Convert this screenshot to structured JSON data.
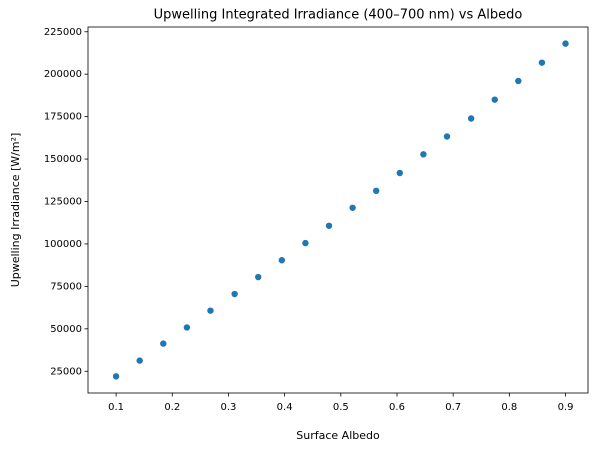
{
  "chart_data": {
    "type": "scatter",
    "title": "Upwelling Integrated Irradiance (400–700 nm) vs Albedo",
    "x_label": "Surface Albedo",
    "y_label": "Upwelling Irradiance [W/m²]",
    "x": [
      0.1,
      0.142,
      0.184,
      0.226,
      0.268,
      0.311,
      0.353,
      0.395,
      0.437,
      0.479,
      0.521,
      0.563,
      0.605,
      0.647,
      0.689,
      0.732,
      0.774,
      0.816,
      0.858,
      0.9
    ],
    "values": [
      22000,
      31300,
      41300,
      50800,
      60700,
      70500,
      80500,
      90400,
      100500,
      110700,
      121300,
      131300,
      141800,
      152800,
      163300,
      173900,
      185000,
      196000,
      206800,
      218000
    ],
    "color": "#1f77b4",
    "xlim": [
      0.05,
      0.94
    ],
    "ylim": [
      12200,
      227800
    ],
    "xticks": [
      0.1,
      0.2,
      0.3,
      0.4,
      0.5,
      0.6,
      0.7,
      0.8,
      0.9
    ],
    "yticks": [
      25000,
      50000,
      75000,
      100000,
      125000,
      150000,
      175000,
      200000,
      225000
    ],
    "grid": false
  }
}
